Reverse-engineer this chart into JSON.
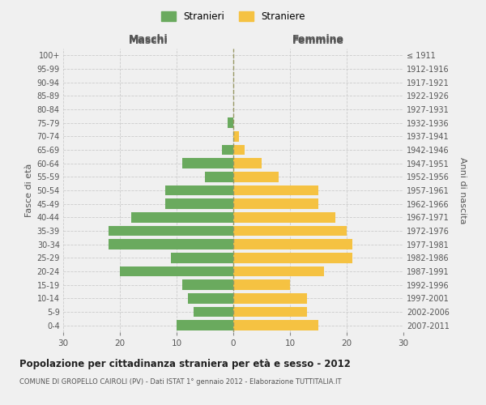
{
  "age_groups": [
    "0-4",
    "5-9",
    "10-14",
    "15-19",
    "20-24",
    "25-29",
    "30-34",
    "35-39",
    "40-44",
    "45-49",
    "50-54",
    "55-59",
    "60-64",
    "65-69",
    "70-74",
    "75-79",
    "80-84",
    "85-89",
    "90-94",
    "95-99",
    "100+"
  ],
  "birth_years": [
    "2007-2011",
    "2002-2006",
    "1997-2001",
    "1992-1996",
    "1987-1991",
    "1982-1986",
    "1977-1981",
    "1972-1976",
    "1967-1971",
    "1962-1966",
    "1957-1961",
    "1952-1956",
    "1947-1951",
    "1942-1946",
    "1937-1941",
    "1932-1936",
    "1927-1931",
    "1922-1926",
    "1917-1921",
    "1912-1916",
    "≤ 1911"
  ],
  "males": [
    10,
    7,
    8,
    9,
    20,
    11,
    22,
    22,
    18,
    12,
    12,
    5,
    9,
    2,
    0,
    1,
    0,
    0,
    0,
    0,
    0
  ],
  "females": [
    15,
    13,
    13,
    10,
    16,
    21,
    21,
    20,
    18,
    15,
    15,
    8,
    5,
    2,
    1,
    0,
    0,
    0,
    0,
    0,
    0
  ],
  "male_color": "#6aaa5e",
  "female_color": "#f5c242",
  "background_color": "#f0f0f0",
  "grid_color": "#cccccc",
  "title": "Popolazione per cittadinanza straniera per età e sesso - 2012",
  "subtitle": "COMUNE DI GROPELLO CAIROLI (PV) - Dati ISTAT 1° gennaio 2012 - Elaborazione TUTTITALIA.IT",
  "xlabel_left": "Maschi",
  "xlabel_right": "Femmine",
  "ylabel_left": "Fasce di età",
  "ylabel_right": "Anni di nascita",
  "legend_male": "Stranieri",
  "legend_female": "Straniere",
  "xlim": 30,
  "bar_height": 0.75
}
